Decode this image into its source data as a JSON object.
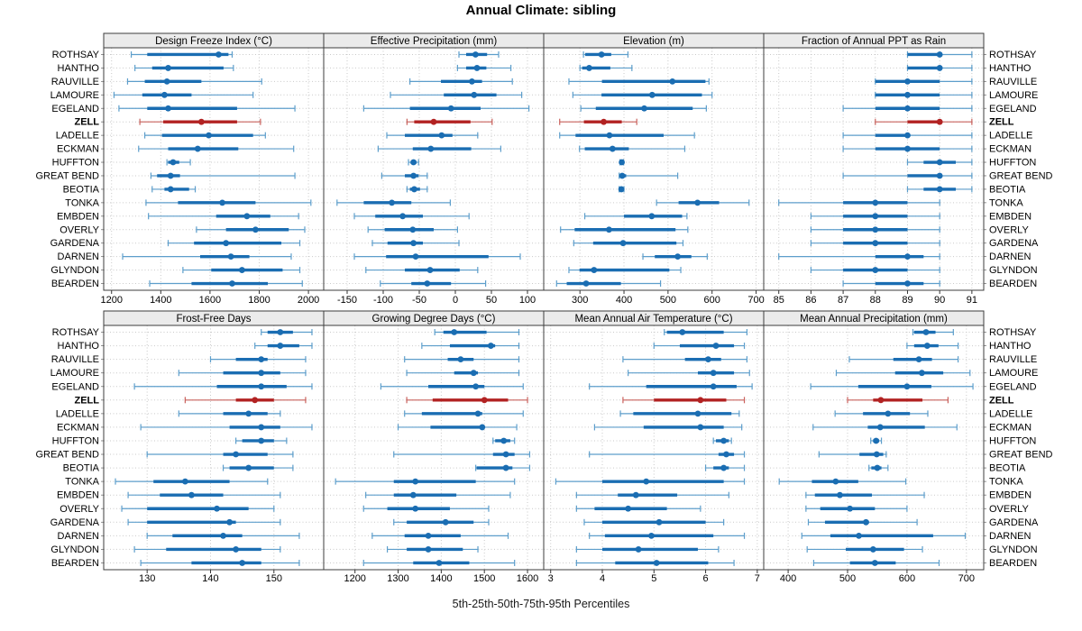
{
  "title": "Annual Climate: sibling",
  "caption": "5th-25th-50th-75th-95th Percentiles",
  "colors": {
    "blue": "#1a6db2",
    "blue_light": "#5d9ecb",
    "red": "#b22222",
    "red_light": "#c9615c",
    "strip_fill": "#ebebeb",
    "panel_border": "#3c3c3c",
    "grid": "#c9c9c9",
    "tick": "#333333",
    "label": "#000000"
  },
  "chart_data": {
    "type": "trellis-dotplot-percentiles",
    "percentile_labels": [
      5,
      25,
      50,
      75,
      95
    ],
    "legend_note": "thin line = 5th-95th, thick bar = 25th-75th, dot = 50th",
    "grid": {
      "rows": 2,
      "cols": 4
    },
    "stations": [
      "ROTHSAY",
      "HANTHO",
      "RAUVILLE",
      "LAMOURE",
      "EGELAND",
      "ZELL",
      "LADELLE",
      "ECKMAN",
      "HUFFTON",
      "GREAT BEND",
      "BEOTIA",
      "TONKA",
      "EMBDEN",
      "OVERLY",
      "GARDENA",
      "DARNEN",
      "GLYNDON",
      "BEARDEN"
    ],
    "highlight_station": "ZELL",
    "panels": [
      {
        "title": "Design Freeze Index (°C)",
        "xlim": [
          1190,
          2040
        ],
        "ticks": [
          1200,
          1400,
          1600,
          1800,
          2000
        ],
        "values": [
          [
            1280,
            1345,
            1635,
            1675,
            1690
          ],
          [
            1295,
            1365,
            1430,
            1655,
            1695
          ],
          [
            1265,
            1335,
            1425,
            1565,
            1810
          ],
          [
            1210,
            1325,
            1415,
            1525,
            1775
          ],
          [
            1230,
            1345,
            1430,
            1710,
            1945
          ],
          [
            1315,
            1410,
            1565,
            1710,
            1805
          ],
          [
            1335,
            1405,
            1595,
            1775,
            1825
          ],
          [
            1310,
            1430,
            1550,
            1715,
            1940
          ],
          [
            1425,
            1430,
            1450,
            1475,
            1520
          ],
          [
            1360,
            1385,
            1440,
            1478,
            1945
          ],
          [
            1365,
            1415,
            1440,
            1515,
            1540
          ],
          [
            1340,
            1470,
            1650,
            1785,
            2010
          ],
          [
            1350,
            1625,
            1750,
            1845,
            1960
          ],
          [
            1545,
            1665,
            1785,
            1920,
            1985
          ],
          [
            1430,
            1535,
            1665,
            1890,
            1965
          ],
          [
            1245,
            1560,
            1685,
            1760,
            1930
          ],
          [
            1490,
            1605,
            1730,
            1895,
            1965
          ],
          [
            1355,
            1525,
            1690,
            1835,
            1975
          ]
        ]
      },
      {
        "title": "Effective Precipitation (mm)",
        "xlim": [
          -175,
          115
        ],
        "ticks": [
          -150,
          -100,
          -50,
          0,
          50,
          100
        ],
        "values": [
          [
            5,
            15,
            28,
            44,
            60
          ],
          [
            3,
            15,
            30,
            43,
            77
          ],
          [
            -63,
            -20,
            23,
            37,
            79
          ],
          [
            -90,
            -16,
            26,
            57,
            92
          ],
          [
            -127,
            -63,
            -6,
            35,
            102
          ],
          [
            -67,
            -57,
            -30,
            21,
            51
          ],
          [
            -95,
            -70,
            -19,
            -4,
            31
          ],
          [
            -107,
            -59,
            -34,
            22,
            63
          ],
          [
            -65,
            -62,
            -58,
            -54,
            -51
          ],
          [
            -102,
            -70,
            -58,
            -51,
            -39
          ],
          [
            -67,
            -63,
            -57,
            -49,
            -39
          ],
          [
            -164,
            -127,
            -88,
            -61,
            -7
          ],
          [
            -140,
            -111,
            -73,
            -45,
            19
          ],
          [
            -121,
            -98,
            -59,
            -30,
            3
          ],
          [
            -115,
            -94,
            -58,
            -45,
            5
          ],
          [
            -140,
            -96,
            -55,
            46,
            90
          ],
          [
            -124,
            -70,
            -35,
            6,
            31
          ],
          [
            -104,
            -61,
            -39,
            -6,
            42
          ]
        ]
      },
      {
        "title": "Elevation (m)",
        "xlim": [
          230,
          705
        ],
        "ticks": [
          300,
          400,
          500,
          600,
          700
        ],
        "values": [
          [
            308,
            312,
            349,
            371,
            409
          ],
          [
            300,
            305,
            321,
            369,
            418
          ],
          [
            275,
            350,
            510,
            585,
            593
          ],
          [
            284,
            349,
            464,
            577,
            600
          ],
          [
            302,
            336,
            446,
            556,
            587
          ],
          [
            254,
            309,
            354,
            395,
            429
          ],
          [
            254,
            290,
            367,
            490,
            560
          ],
          [
            299,
            311,
            374,
            411,
            538
          ],
          [
            391,
            393,
            395,
            397,
            399
          ],
          [
            389,
            391,
            396,
            405,
            522
          ],
          [
            389,
            391,
            394,
            398,
            400
          ],
          [
            474,
            524,
            567,
            616,
            684
          ],
          [
            311,
            400,
            463,
            532,
            543
          ],
          [
            256,
            288,
            366,
            517,
            545
          ],
          [
            286,
            330,
            398,
            519,
            534
          ],
          [
            443,
            470,
            522,
            553,
            589
          ],
          [
            275,
            299,
            332,
            503,
            529
          ],
          [
            247,
            270,
            314,
            393,
            483
          ]
        ]
      },
      {
        "title": "Fraction of Annual PPT as Rain",
        "xlim": [
          84.7,
          91.2
        ],
        "ticks": [
          85,
          86,
          87,
          88,
          89,
          90,
          91
        ],
        "values": [
          [
            89,
            89,
            90,
            90,
            91
          ],
          [
            89,
            89,
            90,
            90,
            91
          ],
          [
            88,
            88,
            89,
            90,
            91
          ],
          [
            88,
            88,
            89,
            90,
            91
          ],
          [
            87,
            88,
            89,
            90,
            91
          ],
          [
            88,
            89,
            90,
            90,
            91
          ],
          [
            87,
            88,
            89,
            89,
            91
          ],
          [
            87,
            88,
            89,
            90,
            91
          ],
          [
            89,
            89.5,
            90,
            90.5,
            91
          ],
          [
            87,
            89,
            90,
            90,
            91
          ],
          [
            89,
            89.5,
            90,
            90.5,
            91
          ],
          [
            85,
            87,
            88,
            89,
            90
          ],
          [
            86,
            87,
            88,
            89,
            90
          ],
          [
            86,
            87,
            88,
            89,
            90
          ],
          [
            86,
            87,
            88,
            89,
            90
          ],
          [
            85,
            88,
            89,
            89.5,
            90
          ],
          [
            86,
            87,
            88,
            89,
            90
          ],
          [
            87,
            88,
            89,
            89.5,
            90
          ]
        ]
      },
      {
        "title": "Frost-Free Days",
        "xlim": [
          124,
          157
        ],
        "ticks": [
          130,
          140,
          150
        ],
        "values": [
          [
            148,
            149,
            151,
            153,
            156
          ],
          [
            147,
            149,
            151,
            154,
            156
          ],
          [
            140,
            144,
            148,
            149,
            155
          ],
          [
            135,
            142,
            148,
            151,
            155
          ],
          [
            128,
            141,
            148,
            152,
            156
          ],
          [
            136,
            144,
            147,
            150,
            155
          ],
          [
            135,
            142,
            146,
            149,
            151
          ],
          [
            129,
            143,
            148,
            151,
            156
          ],
          [
            144,
            145,
            148,
            150,
            152
          ],
          [
            130,
            142,
            144,
            149,
            153
          ],
          [
            142,
            143,
            146,
            150,
            153
          ],
          [
            125,
            131,
            136,
            143,
            149
          ],
          [
            127,
            132,
            137,
            142,
            151
          ],
          [
            126,
            130,
            141,
            146,
            150
          ],
          [
            127,
            130,
            143,
            144,
            151
          ],
          [
            130,
            134,
            142,
            145,
            154
          ],
          [
            128,
            133,
            144,
            148,
            151
          ],
          [
            129,
            137,
            145,
            148,
            154
          ]
        ]
      },
      {
        "title": "Growing Degree Days (°C)",
        "xlim": [
          1140,
          1625
        ],
        "ticks": [
          1200,
          1300,
          1400,
          1500,
          1600
        ],
        "values": [
          [
            1385,
            1405,
            1430,
            1505,
            1580
          ],
          [
            1355,
            1420,
            1515,
            1525,
            1580
          ],
          [
            1315,
            1415,
            1445,
            1475,
            1580
          ],
          [
            1320,
            1430,
            1475,
            1485,
            1580
          ],
          [
            1260,
            1370,
            1480,
            1500,
            1590
          ],
          [
            1320,
            1380,
            1500,
            1555,
            1600
          ],
          [
            1315,
            1355,
            1485,
            1495,
            1590
          ],
          [
            1300,
            1375,
            1495,
            1500,
            1575
          ],
          [
            1520,
            1525,
            1545,
            1560,
            1570
          ],
          [
            1290,
            1520,
            1550,
            1570,
            1605
          ],
          [
            1480,
            1482,
            1550,
            1565,
            1605
          ],
          [
            1155,
            1290,
            1340,
            1480,
            1570
          ],
          [
            1225,
            1290,
            1335,
            1435,
            1560
          ],
          [
            1220,
            1275,
            1340,
            1420,
            1510
          ],
          [
            1290,
            1320,
            1410,
            1475,
            1510
          ],
          [
            1240,
            1315,
            1370,
            1445,
            1555
          ],
          [
            1275,
            1320,
            1370,
            1450,
            1485
          ],
          [
            1220,
            1335,
            1395,
            1465,
            1570
          ]
        ]
      },
      {
        "title": "Mean Annual Air Temperature (°C)",
        "xlim": [
          2.97,
          7.02
        ],
        "ticks": [
          3,
          4,
          5,
          6,
          7
        ],
        "values": [
          [
            5.2,
            5.25,
            5.55,
            6.35,
            6.8
          ],
          [
            5.0,
            5.5,
            6.2,
            6.55,
            6.75
          ],
          [
            4.4,
            5.6,
            6.05,
            6.3,
            6.8
          ],
          [
            4.5,
            5.85,
            6.15,
            6.55,
            6.85
          ],
          [
            3.75,
            4.85,
            6.15,
            6.6,
            6.9
          ],
          [
            4.4,
            5.0,
            5.9,
            6.4,
            6.75
          ],
          [
            4.35,
            4.6,
            5.85,
            6.5,
            6.65
          ],
          [
            3.85,
            4.8,
            5.9,
            6.35,
            6.7
          ],
          [
            6.15,
            6.2,
            6.35,
            6.45,
            6.5
          ],
          [
            3.75,
            6.25,
            6.4,
            6.55,
            6.75
          ],
          [
            6.0,
            6.15,
            6.35,
            6.45,
            6.75
          ],
          [
            3.1,
            4.0,
            4.85,
            6.35,
            6.75
          ],
          [
            3.5,
            4.3,
            4.65,
            5.45,
            6.45
          ],
          [
            3.5,
            3.85,
            4.5,
            5.25,
            5.9
          ],
          [
            3.65,
            4.0,
            5.1,
            6.0,
            6.35
          ],
          [
            3.75,
            4.05,
            4.95,
            6.15,
            6.75
          ],
          [
            3.5,
            4.0,
            4.7,
            5.85,
            6.25
          ],
          [
            3.5,
            4.25,
            5.05,
            6.05,
            6.55
          ]
        ]
      },
      {
        "title": "Mean Annual Precipitation (mm)",
        "xlim": [
          368,
          720
        ],
        "ticks": [
          400,
          500,
          600,
          700
        ],
        "values": [
          [
            610,
            612,
            632,
            648,
            678
          ],
          [
            600,
            612,
            634,
            653,
            686
          ],
          [
            503,
            577,
            620,
            642,
            686
          ],
          [
            481,
            580,
            625,
            661,
            706
          ],
          [
            438,
            518,
            600,
            641,
            711
          ],
          [
            500,
            543,
            556,
            626,
            669
          ],
          [
            479,
            526,
            568,
            605,
            635
          ],
          [
            442,
            534,
            555,
            630,
            684
          ],
          [
            539,
            543,
            548,
            553,
            557
          ],
          [
            452,
            520,
            549,
            560,
            565
          ],
          [
            536,
            540,
            550,
            557,
            568
          ],
          [
            385,
            440,
            480,
            518,
            598
          ],
          [
            430,
            445,
            487,
            541,
            629
          ],
          [
            430,
            454,
            504,
            546,
            600
          ],
          [
            434,
            462,
            531,
            536,
            617
          ],
          [
            423,
            471,
            519,
            644,
            698
          ],
          [
            432,
            497,
            543,
            595,
            626
          ],
          [
            443,
            504,
            546,
            581,
            654
          ]
        ]
      }
    ]
  }
}
